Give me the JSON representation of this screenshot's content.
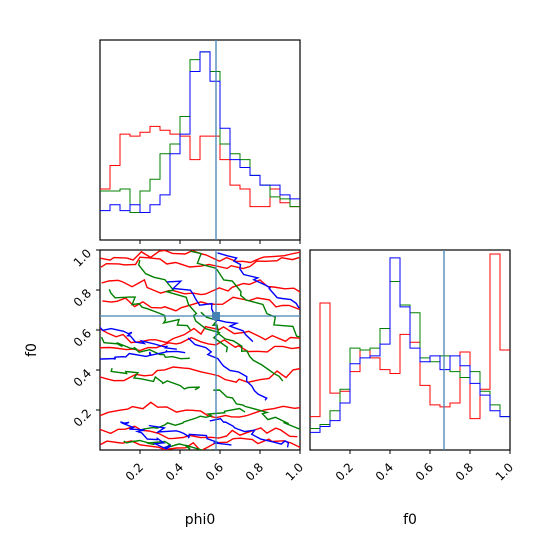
{
  "chart_data": {
    "type": "corner",
    "parameters": [
      "phi0",
      "f0"
    ],
    "truth": {
      "phi0": 0.58,
      "f0": 0.67
    },
    "truth_color": "#4682b4",
    "series_colors": {
      "red": "#ff0000",
      "green": "#008000",
      "blue": "#0000ff"
    },
    "axes": {
      "phi0_range": [
        0,
        1
      ],
      "f0_range": [
        0,
        1
      ],
      "tick_labels": [
        "0.2",
        "0.4",
        "0.6",
        "0.8",
        "1.0"
      ],
      "tick_values": [
        0.2,
        0.4,
        0.6,
        0.8,
        1.0
      ]
    },
    "hist_phi0": {
      "bin_edges": [
        0,
        0.05,
        0.1,
        0.15,
        0.2,
        0.25,
        0.3,
        0.35,
        0.4,
        0.45,
        0.5,
        0.55,
        0.6,
        0.65,
        0.7,
        0.75,
        0.8,
        0.85,
        0.9,
        0.95,
        1.0
      ],
      "ymax": 1.0,
      "red": [
        0.26,
        0.38,
        0.54,
        0.53,
        0.55,
        0.58,
        0.56,
        0.54,
        0.53,
        0.41,
        0.53,
        0.53,
        0.41,
        0.28,
        0.26,
        0.17,
        0.17,
        0.26,
        0.19,
        0.17
      ],
      "green": [
        0.25,
        0.25,
        0.26,
        0.14,
        0.25,
        0.31,
        0.44,
        0.49,
        0.63,
        0.92,
        0.96,
        0.86,
        0.49,
        0.44,
        0.41,
        0.33,
        0.28,
        0.22,
        0.21,
        0.17
      ],
      "blue": [
        0.15,
        0.18,
        0.15,
        0.18,
        0.14,
        0.18,
        0.23,
        0.44,
        0.54,
        0.86,
        0.96,
        0.81,
        0.57,
        0.41,
        0.37,
        0.33,
        0.28,
        0.28,
        0.23,
        0.21
      ]
    },
    "hist_f0": {
      "bin_edges": [
        0,
        0.05,
        0.1,
        0.15,
        0.2,
        0.25,
        0.3,
        0.35,
        0.4,
        0.45,
        0.5,
        0.55,
        0.6,
        0.65,
        0.7,
        0.75,
        0.8,
        0.85,
        0.9,
        0.95,
        1.0
      ],
      "ymax": 1.0,
      "red": [
        0.17,
        0.75,
        0.29,
        0.3,
        0.4,
        0.51,
        0.47,
        0.41,
        0.39,
        0.59,
        0.55,
        0.33,
        0.23,
        0.22,
        0.24,
        0.5,
        0.16,
        0.31,
        1.0,
        0.51
      ],
      "green": [
        0.11,
        0.13,
        0.2,
        0.31,
        0.52,
        0.51,
        0.52,
        0.62,
        0.86,
        0.74,
        0.7,
        0.47,
        0.45,
        0.48,
        0.4,
        0.37,
        0.4,
        0.3,
        0.23,
        0.17
      ],
      "blue": [
        0.09,
        0.12,
        0.15,
        0.24,
        0.44,
        0.47,
        0.48,
        0.54,
        0.98,
        0.73,
        0.52,
        0.45,
        0.48,
        0.41,
        0.48,
        0.43,
        0.34,
        0.28,
        0.2,
        0.17
      ]
    },
    "xlabels": [
      "phi0",
      "f0"
    ],
    "ylabel": "f0"
  }
}
